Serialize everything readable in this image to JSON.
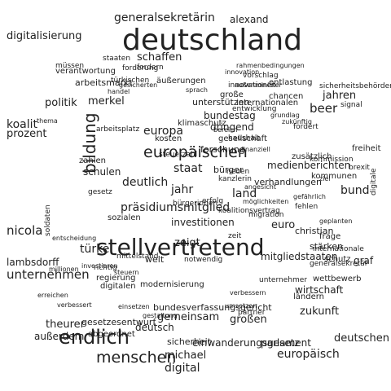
{
  "words": [
    "deutschland",
    "stellvertretend",
    "endlich",
    "menschen",
    "europäischen",
    "bildung",
    "präsidiumsmitglied",
    "europa",
    "deutlich",
    "zukunft",
    "unternehmen",
    "beer",
    "generalsekretärin",
    "digitalisierung",
    "alexand",
    "politik",
    "merkel",
    "schaffen",
    "koalit",
    "prozent",
    "türkei",
    "lambsdorff",
    "nicola",
    "theurer",
    "digital",
    "michael",
    "europäisch",
    "wirtschaft",
    "bund",
    "unterstützen",
    "gemeinsam",
    "großen",
    "bundestag",
    "dringend",
    "zeigt",
    "land",
    "jahr",
    "staat",
    "euro",
    "schulen",
    "investitionen",
    "deutschen",
    "deutsch",
    "außerdem",
    "sicherheit",
    "einwanderungsgesetz",
    "parlament",
    "forschung",
    "bundesverfassungsgericht",
    "modernisierung",
    "digitalen",
    "regierung",
    "medienberichten",
    "christian",
    "internationalen",
    "kommunen",
    "ländern",
    "freiheit",
    "entlastung",
    "verantwortung",
    "arbeitsmarkt",
    "fordern",
    "sozialen",
    "entwicklung",
    "chancen",
    "stärken",
    "mitgliedstaaten",
    "generalsekretär",
    "gesetzesentwurf",
    "abgeordnet",
    "wettbewerb",
    "partner",
    "graf",
    "schutz",
    "jahren",
    "große",
    "signal",
    "staaten",
    "forderung",
    "äußerungen",
    "kosten",
    "bürger",
    "haushalt",
    "klimaschutz",
    "fordert",
    "sprach",
    "digitale",
    "kommission",
    "zusätzlich",
    "gesetz",
    "welt",
    "gesellschaft",
    "notwendig",
    "brexit",
    "thema",
    "frage",
    "mittelstand",
    "investieren",
    "richtig",
    "millionen",
    "soldaten",
    "zahlen",
    "steuerzahl",
    "neuen",
    "erfolg",
    "zeit",
    "fehlen",
    "handel",
    "bereich",
    "müssen",
    "türkischen",
    "rahmenbedingungen",
    "grundlag",
    "sicherheitsbehörden",
    "kanzlerin",
    "angesicht",
    "entscheidung",
    "gestaltung",
    "einsetzen",
    "innovationen",
    "innovation",
    "gesicherten",
    "verhandlungen",
    "vorschlag",
    "ziel",
    "koalitionsvertrag",
    "migration",
    "verbessern",
    "umsetzen",
    "geplanten",
    "außenminister",
    "unternehmer",
    "gefährlich",
    "internationale",
    "erreichen",
    "verbessert",
    "möglichkeiten",
    "bürgerinnen",
    "finanziell",
    "zukünftig",
    "steuern",
    "arbeitsplatz",
    "betroffenen",
    "millionen",
    "rechtsstaat"
  ]
}
